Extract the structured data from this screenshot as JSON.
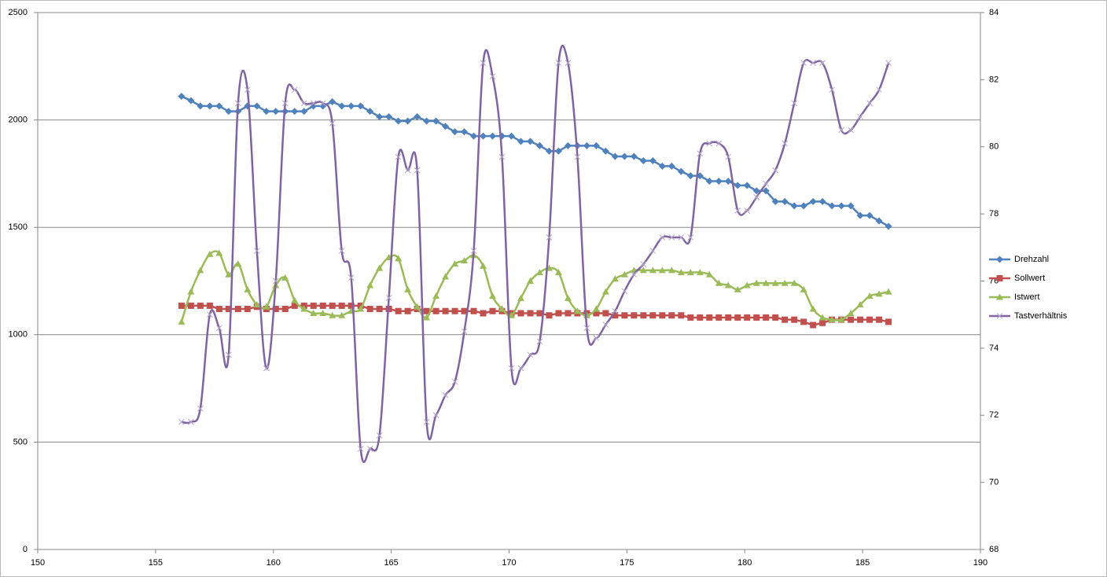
{
  "chart_data": {
    "type": "line",
    "x": [
      156.1,
      156.5,
      156.9,
      157.3,
      157.7,
      158.1,
      158.5,
      158.9,
      159.3,
      159.7,
      160.1,
      160.5,
      160.9,
      161.3,
      161.7,
      162.1,
      162.5,
      162.9,
      163.3,
      163.7,
      164.1,
      164.5,
      164.9,
      165.3,
      165.7,
      166.1,
      166.5,
      166.9,
      167.3,
      167.7,
      168.1,
      168.5,
      168.9,
      169.3,
      169.7,
      170.1,
      170.5,
      170.9,
      171.3,
      171.7,
      172.1,
      172.5,
      172.9,
      173.3,
      173.7,
      174.1,
      174.5,
      174.9,
      175.3,
      175.7,
      176.1,
      176.5,
      176.9,
      177.3,
      177.7,
      178.1,
      178.5,
      178.9,
      179.3,
      179.7,
      180.1,
      180.5,
      180.9,
      181.3,
      181.7,
      182.1,
      182.5,
      182.9,
      183.3,
      183.7,
      184.1,
      184.5,
      184.9,
      185.3,
      185.7,
      186.1
    ],
    "series": [
      {
        "name": "Drehzahl",
        "color": "#4f81bd",
        "marker": "diamond",
        "smooth": false,
        "values": [
          2110,
          2090,
          2065,
          2065,
          2065,
          2040,
          2040,
          2065,
          2065,
          2040,
          2040,
          2040,
          2040,
          2040,
          2065,
          2065,
          2085,
          2065,
          2065,
          2065,
          2040,
          2015,
          2015,
          1995,
          1995,
          2015,
          1995,
          1995,
          1970,
          1945,
          1945,
          1925,
          1925,
          1925,
          1925,
          1925,
          1900,
          1900,
          1880,
          1855,
          1855,
          1880,
          1880,
          1880,
          1880,
          1855,
          1830,
          1830,
          1830,
          1810,
          1810,
          1785,
          1785,
          1760,
          1740,
          1740,
          1715,
          1715,
          1715,
          1695,
          1695,
          1670,
          1670,
          1620,
          1620,
          1600,
          1600,
          1620,
          1620,
          1600,
          1600,
          1600,
          1555,
          1555,
          1530,
          1505
        ]
      },
      {
        "name": "Sollwert",
        "color": "#c0504d",
        "marker": "square",
        "smooth": false,
        "values": [
          1135,
          1135,
          1135,
          1135,
          1120,
          1120,
          1120,
          1120,
          1130,
          1120,
          1120,
          1120,
          1135,
          1135,
          1135,
          1135,
          1135,
          1135,
          1135,
          1135,
          1120,
          1120,
          1120,
          1110,
          1110,
          1120,
          1110,
          1110,
          1110,
          1110,
          1110,
          1110,
          1100,
          1110,
          1110,
          1100,
          1100,
          1100,
          1100,
          1090,
          1100,
          1100,
          1100,
          1100,
          1100,
          1100,
          1090,
          1090,
          1090,
          1090,
          1090,
          1090,
          1090,
          1090,
          1080,
          1080,
          1080,
          1080,
          1080,
          1080,
          1080,
          1080,
          1080,
          1080,
          1070,
          1070,
          1060,
          1045,
          1055,
          1070,
          1070,
          1070,
          1070,
          1070,
          1070,
          1060
        ]
      },
      {
        "name": "Istwert",
        "color": "#9bbb59",
        "marker": "triangle",
        "smooth": true,
        "values": [
          1060,
          1200,
          1300,
          1375,
          1380,
          1280,
          1330,
          1210,
          1140,
          1130,
          1230,
          1265,
          1160,
          1120,
          1100,
          1100,
          1090,
          1090,
          1110,
          1120,
          1230,
          1310,
          1360,
          1355,
          1210,
          1130,
          1080,
          1180,
          1270,
          1330,
          1345,
          1370,
          1320,
          1180,
          1120,
          1090,
          1170,
          1250,
          1290,
          1310,
          1290,
          1170,
          1110,
          1090,
          1120,
          1200,
          1260,
          1280,
          1300,
          1300,
          1300,
          1300,
          1300,
          1290,
          1290,
          1290,
          1280,
          1240,
          1230,
          1210,
          1230,
          1240,
          1240,
          1240,
          1240,
          1240,
          1210,
          1120,
          1080,
          1070,
          1070,
          1100,
          1140,
          1180,
          1190,
          1200
        ]
      },
      {
        "name": "Tastverhältnis",
        "color": "#8064a2",
        "marker": "x",
        "smooth": true,
        "axis": "y2",
        "values": [
          71.8,
          71.8,
          72.2,
          75.0,
          74.6,
          73.8,
          81.3,
          81.7,
          76.9,
          73.4,
          76.0,
          81.3,
          81.7,
          81.3,
          81.3,
          81.3,
          80.7,
          76.9,
          76.1,
          71.0,
          71.0,
          71.4,
          75.5,
          79.7,
          79.3,
          79.3,
          71.8,
          72.0,
          72.6,
          73.0,
          74.5,
          76.9,
          82.5,
          82.1,
          79.7,
          73.4,
          73.4,
          73.8,
          74.2,
          77.3,
          82.5,
          82.5,
          79.7,
          74.6,
          74.3,
          74.7,
          75.1,
          75.7,
          76.2,
          76.5,
          76.9,
          77.3,
          77.3,
          77.3,
          77.3,
          79.8,
          80.1,
          80.1,
          79.7,
          78.1,
          78.1,
          78.5,
          78.9,
          79.3,
          80.1,
          81.3,
          82.5,
          82.5,
          82.5,
          81.7,
          80.5,
          80.5,
          80.9,
          81.3,
          81.7,
          82.5
        ]
      }
    ],
    "xlim": [
      150,
      190
    ],
    "xticks": [
      150,
      155,
      160,
      165,
      170,
      175,
      180,
      185,
      190
    ],
    "ylim": [
      0,
      2500
    ],
    "yticks": [
      0,
      500,
      1000,
      1500,
      2000,
      2500
    ],
    "y2lim": [
      68,
      84
    ],
    "y2ticks": [
      68,
      70,
      72,
      74,
      76,
      78,
      80,
      82,
      84
    ],
    "grid": true,
    "legend": "right"
  }
}
